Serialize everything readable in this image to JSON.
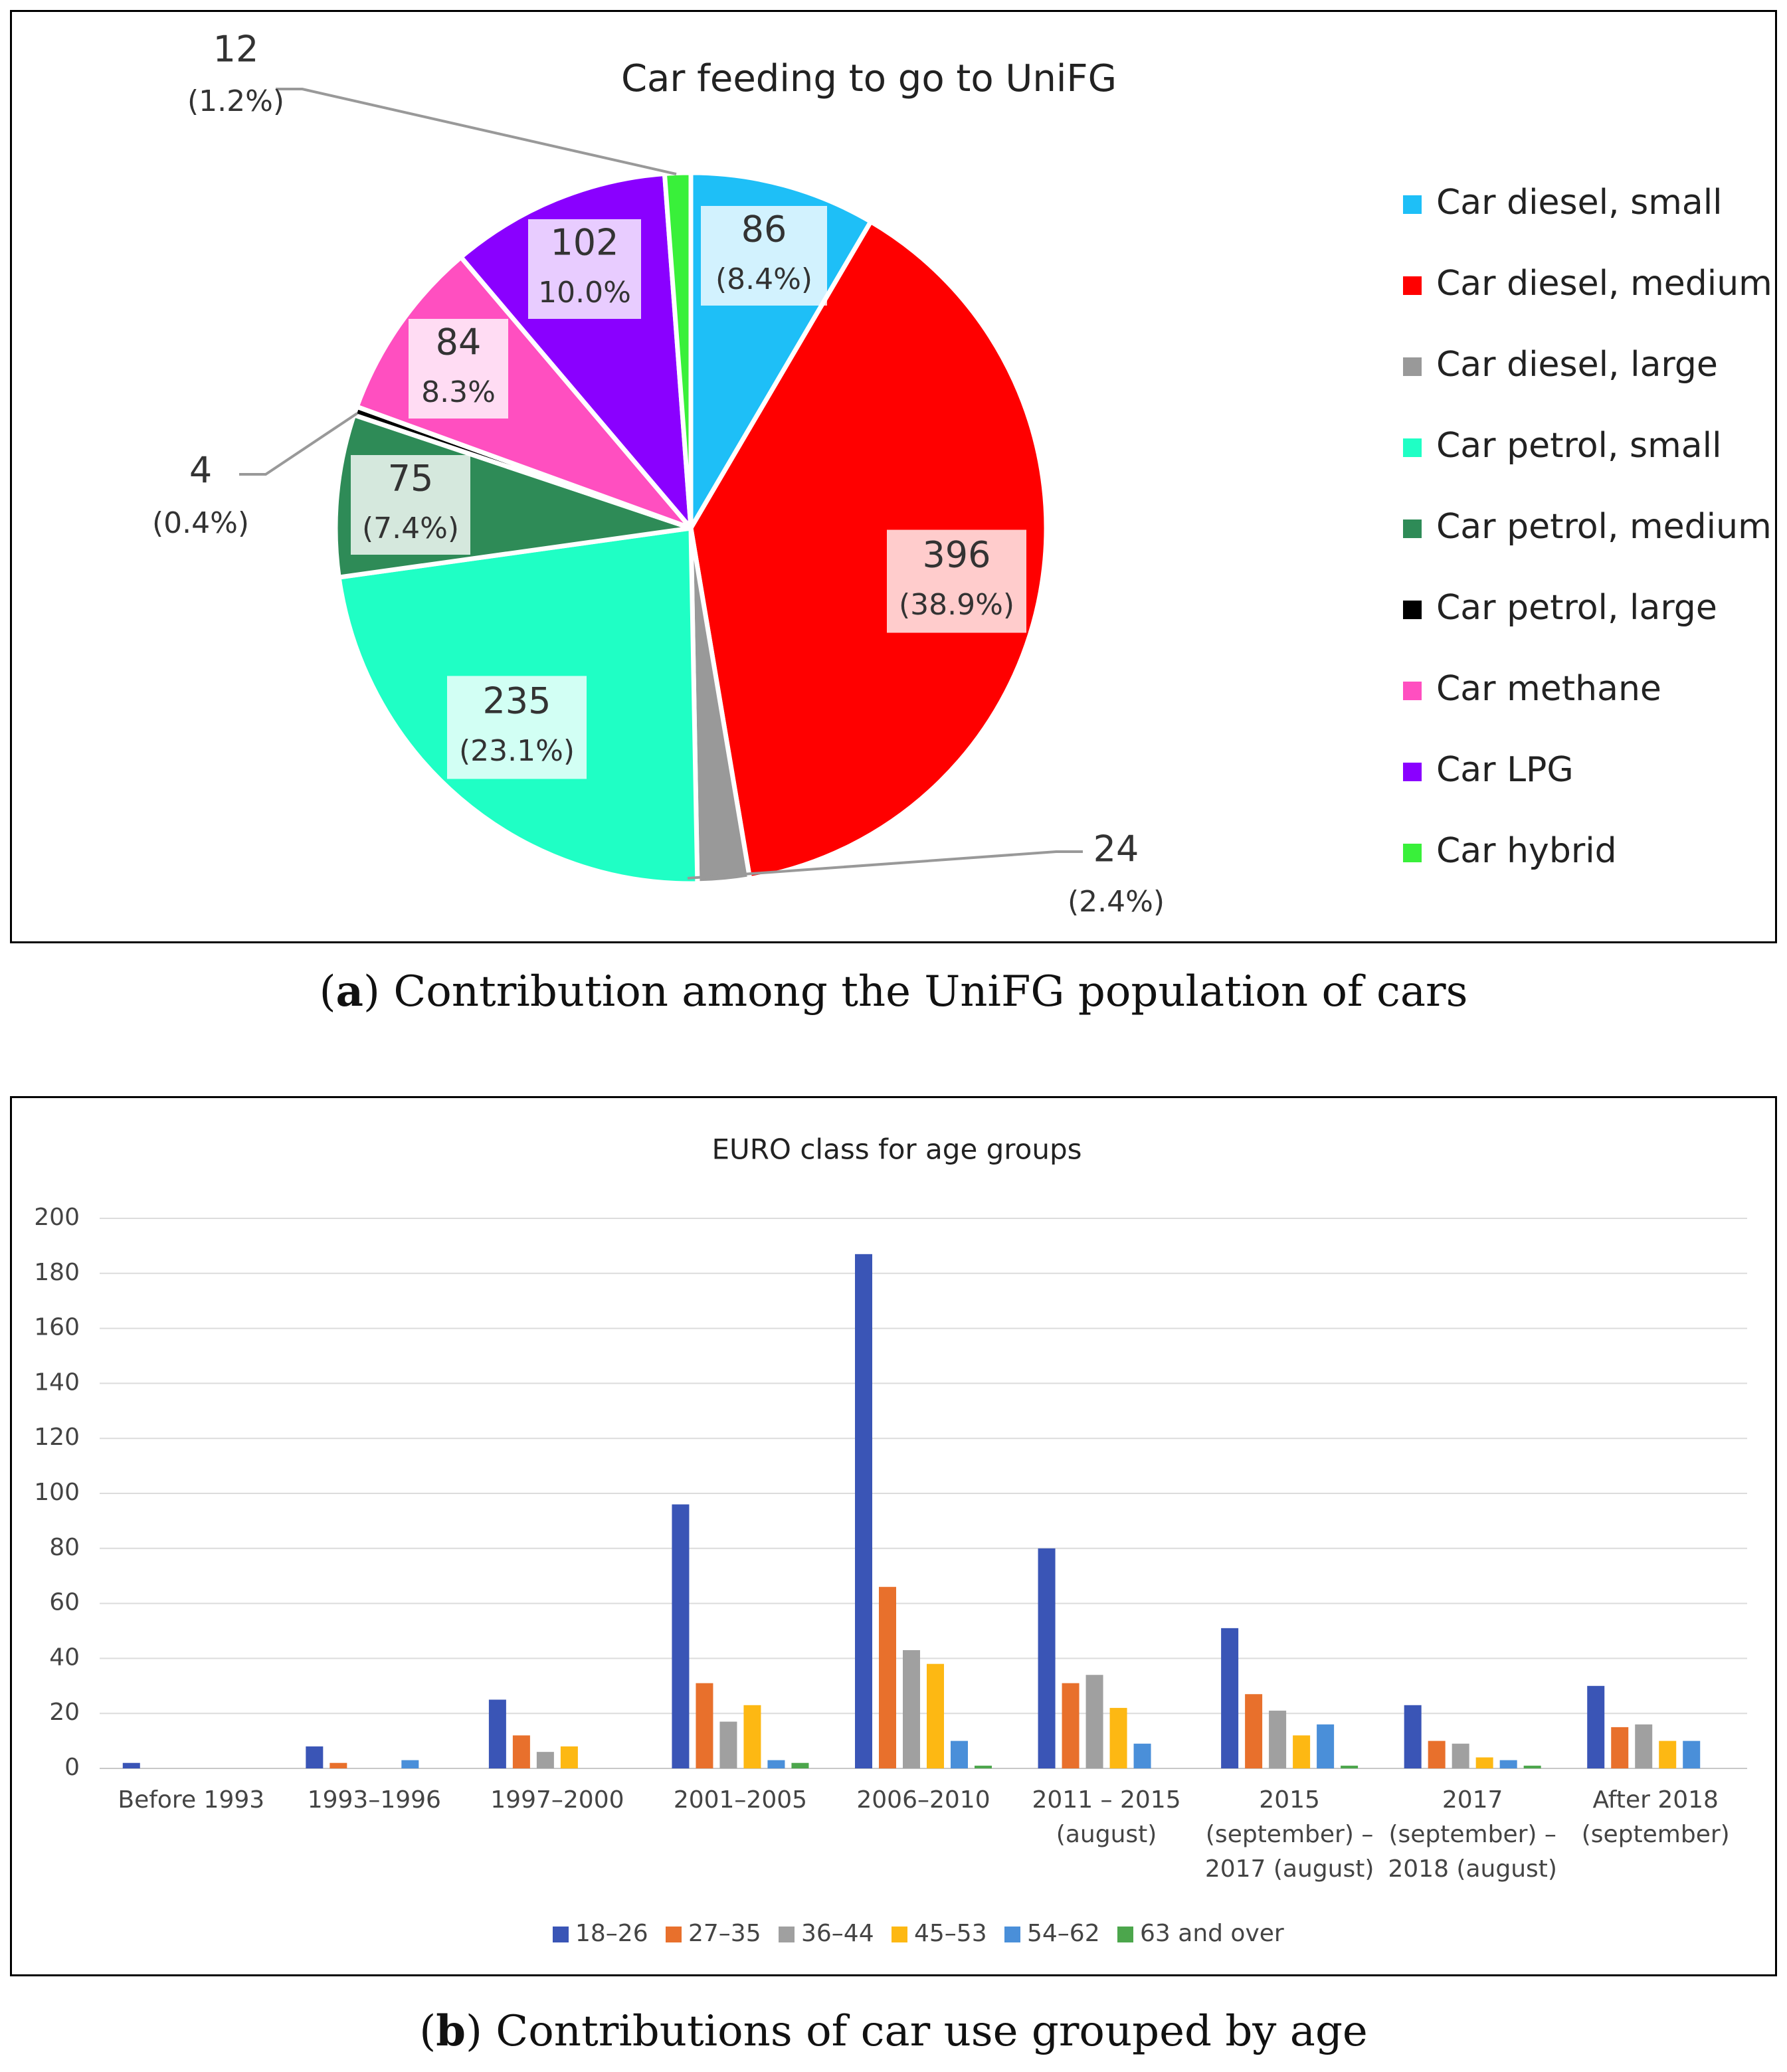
{
  "captions": {
    "a_letter": "a",
    "a_text": " Contribution among the UniFG population of cars",
    "b_letter": "b",
    "b_text": " Contributions of car use grouped by age"
  },
  "chart_data": [
    {
      "type": "pie",
      "title": "Car feeding to go to UniFG",
      "legend_position": "right",
      "slices": [
        {
          "label": "Car diesel, small",
          "value": 86,
          "value_label": "86",
          "pct_label": "(8.4%)",
          "color": "#1EBFF7"
        },
        {
          "label": "Car diesel, medium",
          "value": 396,
          "value_label": "396",
          "pct_label": "(38.9%)",
          "color": "#FF0000"
        },
        {
          "label": "Car diesel, large",
          "value": 24,
          "value_label": "24",
          "pct_label": "(2.4%)",
          "color": "#999999"
        },
        {
          "label": "Car petrol, small",
          "value": 235,
          "value_label": "235",
          "pct_label": "(23.1%)",
          "color": "#1FFFC5"
        },
        {
          "label": "Car petrol, medium",
          "value": 75,
          "value_label": "75",
          "pct_label": "(7.4%)",
          "color": "#2E8B57"
        },
        {
          "label": "Car petrol, large",
          "value": 4,
          "value_label": "4",
          "pct_label": "(0.4%)",
          "color": "#000000"
        },
        {
          "label": "Car methane",
          "value": 84,
          "value_label": "84",
          "pct_label": "8.3%",
          "color": "#FF4FC0"
        },
        {
          "label": "Car LPG",
          "value": 102,
          "value_label": "102",
          "pct_label": "10.0%",
          "color": "#8A00FF"
        },
        {
          "label": "Car hybrid",
          "value": 12,
          "value_label": "12",
          "pct_label": "(1.2%)",
          "color": "#39F03A"
        }
      ]
    },
    {
      "type": "bar",
      "title": "EURO class for age groups",
      "categories": [
        [
          "Before 1993"
        ],
        [
          "1993–1996"
        ],
        [
          "1997–2000"
        ],
        [
          "2001–2005"
        ],
        [
          "2006–2010"
        ],
        [
          "2011 – 2015",
          "(august)"
        ],
        [
          "2015",
          "(september) –",
          "2017 (august)"
        ],
        [
          "2017",
          "(september) –",
          "2018 (august)"
        ],
        [
          "After 2018",
          "(september)"
        ]
      ],
      "series": [
        {
          "name": "18–26",
          "color": "#3A55B6",
          "values": [
            2,
            8,
            25,
            96,
            187,
            80,
            51,
            23,
            30
          ]
        },
        {
          "name": "27–35",
          "color": "#E8702C",
          "values": [
            0,
            2,
            12,
            31,
            66,
            31,
            27,
            10,
            15
          ]
        },
        {
          "name": "36–44",
          "color": "#A0A0A0",
          "values": [
            0,
            0,
            6,
            17,
            43,
            34,
            21,
            9,
            16
          ]
        },
        {
          "name": "45–53",
          "color": "#FDB813",
          "values": [
            0,
            0,
            8,
            23,
            38,
            22,
            12,
            4,
            10
          ]
        },
        {
          "name": "54–62",
          "color": "#4A8FD9",
          "values": [
            0,
            3,
            0,
            3,
            10,
            9,
            16,
            3,
            10
          ]
        },
        {
          "name": "63 and over",
          "color": "#4CA64C",
          "values": [
            0,
            0,
            0,
            2,
            1,
            0,
            1,
            1,
            0
          ]
        }
      ],
      "ylim": [
        0,
        200
      ],
      "yticks": [
        0,
        20,
        40,
        60,
        80,
        100,
        120,
        140,
        160,
        180,
        200
      ],
      "grid": true,
      "legend_position": "bottom",
      "xlabel": "",
      "ylabel": ""
    }
  ]
}
